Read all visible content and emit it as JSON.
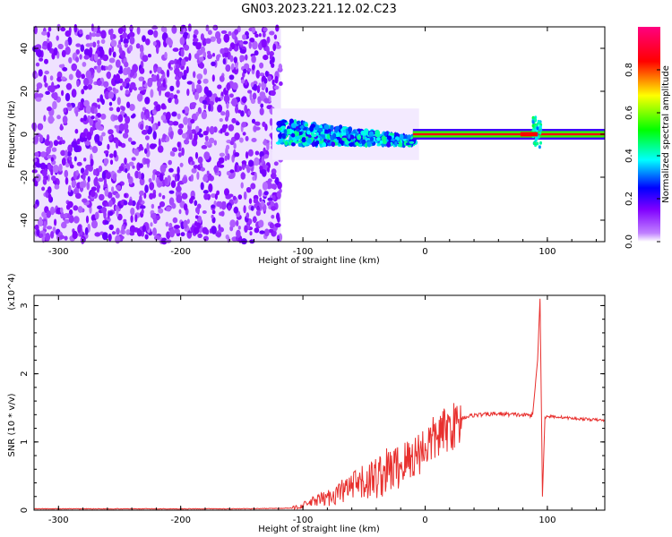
{
  "title": "GN03.2023.221.12.02.C23",
  "chart_data": [
    {
      "type": "heatmap",
      "title": "GN03.2023.221.12.02.C23",
      "xlabel": "Height of straight line (km)",
      "ylabel": "Frequency (Hz)",
      "xlim": [
        -320,
        147
      ],
      "ylim": [
        -50,
        50
      ],
      "xticks": [
        "-300",
        "-200",
        "-100",
        "0",
        "100"
      ],
      "yticks": [
        "-40",
        "-20",
        "0",
        "20",
        "40"
      ],
      "colorbar": {
        "label": "Normalized spectral amplitude",
        "range": [
          0.0,
          1.0
        ],
        "ticks": [
          "0.0",
          "0.2",
          "0.4",
          "0.6",
          "0.8"
        ],
        "colormap": [
          "#ffffff",
          "#8000ff",
          "#0000ff",
          "#00ffff",
          "#00ff00",
          "#ffff00",
          "#ff0000",
          "#ff0080"
        ]
      },
      "regions": [
        {
          "x_range": [
            -320,
            -118
          ],
          "freq_range": [
            -50,
            50
          ],
          "amplitude": 0.15,
          "description": "broadband noise"
        },
        {
          "x_range": [
            -120,
            -10
          ],
          "freq_range": [
            -6,
            8
          ],
          "amplitude": 0.35
        },
        {
          "x_range": [
            -10,
            147
          ],
          "freq_range": [
            -2,
            2
          ],
          "amplitude": 0.9
        },
        {
          "x_range": [
            88,
            95
          ],
          "freq_range": [
            -6,
            8
          ],
          "amplitude": 0.5
        }
      ]
    },
    {
      "type": "line",
      "xlabel": "Height of straight line (km)",
      "ylabel": "SNR (10 * v/v)",
      "y_multiplier": "(x10^4)",
      "xlim": [
        -320,
        147
      ],
      "ylim": [
        0,
        3.15
      ],
      "xticks": [
        "-300",
        "-200",
        "-100",
        "0",
        "100"
      ],
      "yticks": [
        "0",
        "1",
        "2",
        "3"
      ],
      "series": [
        {
          "color": "#e8302e",
          "x": [
            -320,
            -250,
            -200,
            -150,
            -110,
            -100,
            -90,
            -80,
            -70,
            -60,
            -50,
            -40,
            -30,
            -20,
            -10,
            0,
            10,
            20,
            30,
            40,
            60,
            80,
            88,
            92,
            94,
            96,
            98,
            100,
            110,
            120,
            130,
            147
          ],
          "y": [
            0.02,
            0.02,
            0.02,
            0.02,
            0.03,
            0.08,
            0.15,
            0.2,
            0.3,
            0.38,
            0.45,
            0.55,
            0.65,
            0.72,
            0.85,
            1.0,
            1.15,
            1.28,
            1.36,
            1.4,
            1.42,
            1.4,
            1.4,
            2.2,
            3.1,
            0.2,
            1.36,
            1.38,
            1.37,
            1.35,
            1.34,
            1.32
          ]
        }
      ]
    }
  ]
}
